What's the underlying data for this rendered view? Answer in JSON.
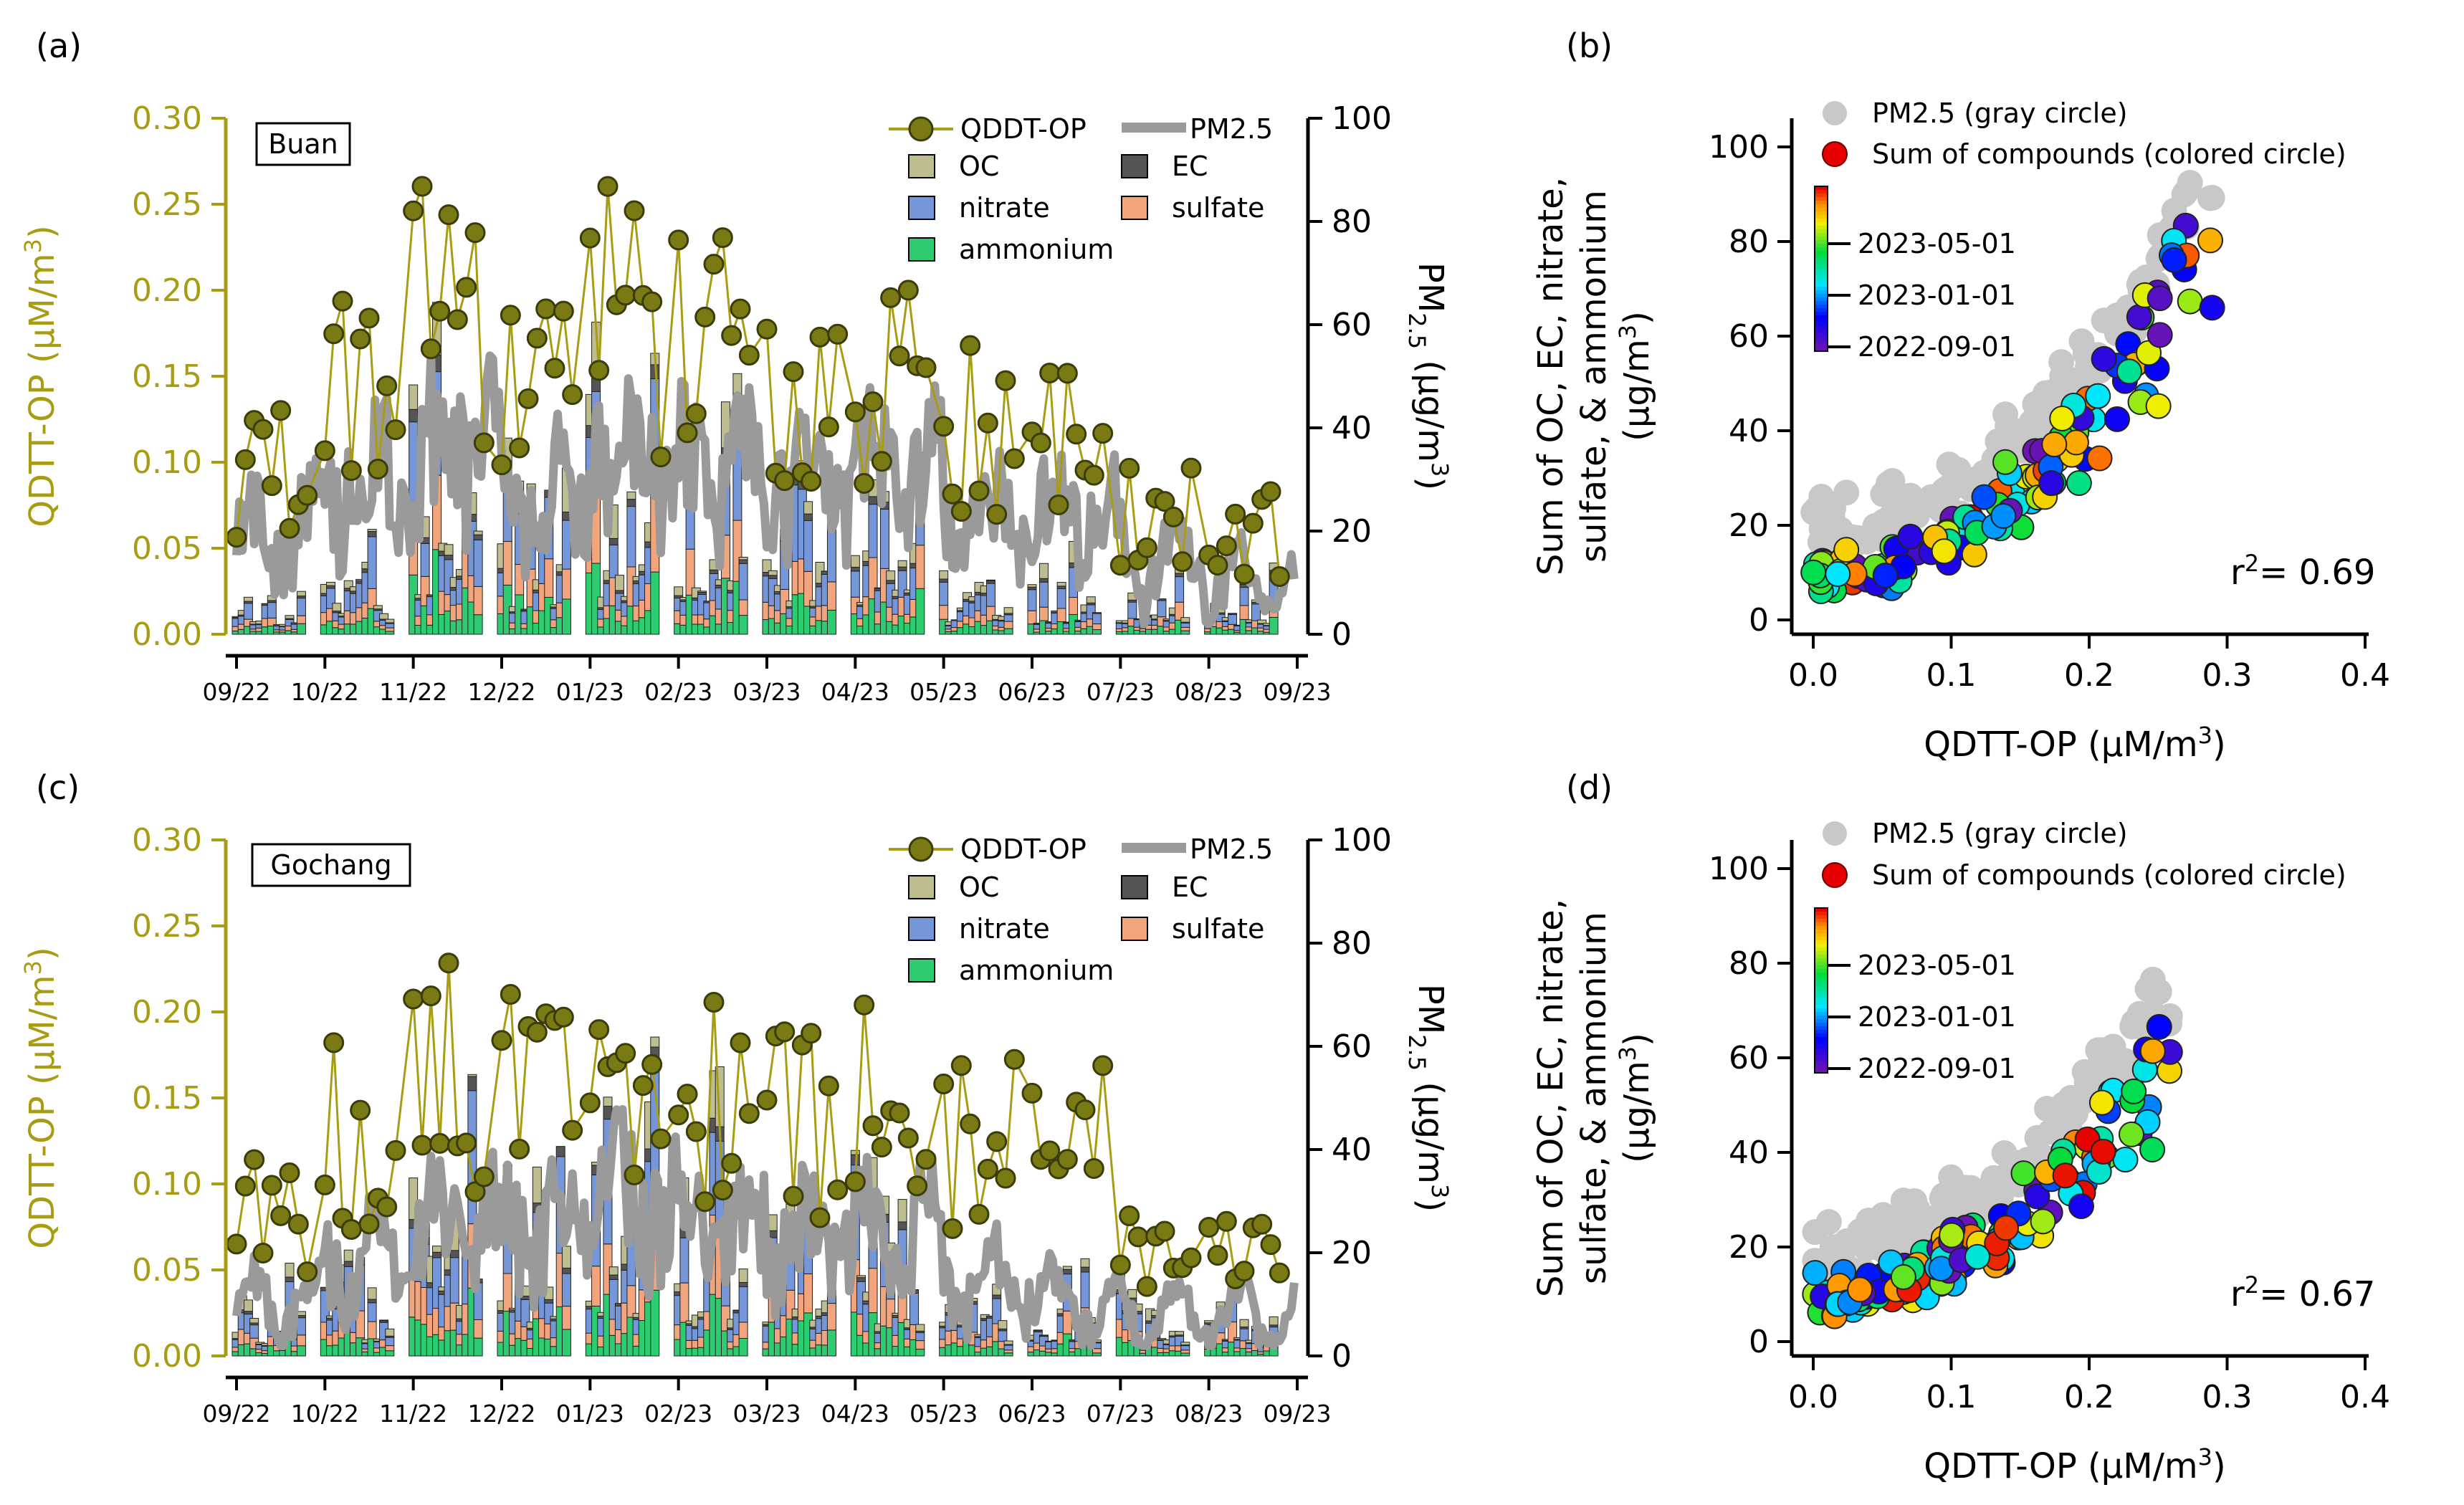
{
  "colors": {
    "olive": "#a89c12",
    "marker_fill": "#7a7a14",
    "marker_edge": "#3c3c0a",
    "pm_line": "#9a9a9a",
    "oc": "#bdbd8f",
    "ec": "#555555",
    "nitrate": "#7596d8",
    "sulfate": "#f2a47d",
    "ammonium": "#2ecc71",
    "gray_circle": "#c8c8c8"
  },
  "chart_data": [
    {
      "panel": "(a)",
      "type": "bar+line",
      "site": "Buan",
      "x_tick_labels": [
        "09/22",
        "10/22",
        "11/22",
        "12/22",
        "01/23",
        "02/23",
        "03/23",
        "04/23",
        "05/23",
        "06/23",
        "07/23",
        "08/23",
        "09/23"
      ],
      "y_left_label_main": "QDTT-OP (µM/m",
      "y_left_label_sup": "3",
      "y_left_label_end": ")",
      "y_left_range": [
        0,
        0.3
      ],
      "y_left_ticks": [
        "0.00",
        "0.05",
        "0.10",
        "0.15",
        "0.20",
        "0.25",
        "0.30"
      ],
      "y_right_label_main": "PM",
      "y_right_label_sub": "2.5",
      "y_right_label_end": " (µg/m",
      "y_right_label_sup": "3",
      "y_right_label_close": ")",
      "y_right_range": [
        0,
        100
      ],
      "y_right_ticks": [
        "0",
        "20",
        "40",
        "60",
        "80",
        "100"
      ],
      "legend": {
        "qdtt": "QDDT-OP",
        "pm": "PM2.5",
        "oc": "OC",
        "ec": "EC",
        "nitrate": "nitrate",
        "sulfate": "sulfate",
        "ammonium": "ammonium"
      },
      "seed": 11,
      "qdtt_months": [
        0.09,
        0.14,
        0.19,
        0.15,
        0.18,
        0.16,
        0.14,
        0.15,
        0.12,
        0.11,
        0.07,
        0.06
      ],
      "pm_months": [
        20,
        30,
        35,
        26,
        34,
        30,
        28,
        32,
        22,
        22,
        14,
        10
      ],
      "bar_months": [
        6,
        9,
        22,
        16,
        24,
        18,
        16,
        20,
        8,
        7,
        6,
        5
      ]
    },
    {
      "panel": "(b)",
      "type": "scatter",
      "x_label_main": "QDTT-OP (µM/m",
      "x_label_sup": "3",
      "x_label_end": ")",
      "x_range": [
        0,
        0.4
      ],
      "x_ticks": [
        "0.0",
        "0.1",
        "0.2",
        "0.3",
        "0.4"
      ],
      "y_range": [
        0,
        100
      ],
      "y_ticks": [
        "0",
        "20",
        "40",
        "60",
        "80",
        "100"
      ],
      "y_label_lines": [
        "Sum of OC, EC, nitrate,",
        "sulfate, & ammonium"
      ],
      "y_label_unit_main": "(µg/m",
      "y_label_unit_sup": "3",
      "y_label_unit_end": ")",
      "legend_gray": "PM2.5 (gray circle)",
      "legend_color": "Sum of compounds (colored circle)",
      "colorbar_ticks": [
        "2023-05-01",
        "2023-01-01",
        "2022-09-01"
      ],
      "r2_label": "r",
      "r2_sup": "2",
      "r2_value": "= 0.69",
      "seed": 23,
      "slope": 150,
      "max_x": 0.29
    },
    {
      "panel": "(c)",
      "type": "bar+line",
      "site": "Gochang",
      "x_tick_labels": [
        "09/22",
        "10/22",
        "11/22",
        "12/22",
        "01/23",
        "02/23",
        "03/23",
        "04/23",
        "05/23",
        "06/23",
        "07/23",
        "08/23",
        "09/23"
      ],
      "y_left_label_main": "QDTT-OP (µM/m",
      "y_left_label_sup": "3",
      "y_left_label_end": ")",
      "y_left_range": [
        0,
        0.3
      ],
      "y_left_ticks": [
        "0.00",
        "0.05",
        "0.10",
        "0.15",
        "0.20",
        "0.25",
        "0.30"
      ],
      "y_right_label_main": "PM",
      "y_right_label_sub": "2.5",
      "y_right_label_end": " (µg/m",
      "y_right_label_sup": "3",
      "y_right_label_close": ")",
      "y_right_range": [
        0,
        100
      ],
      "y_right_ticks": [
        "0",
        "20",
        "40",
        "60",
        "80",
        "100"
      ],
      "legend": {
        "qdtt": "QDDT-OP",
        "pm": "PM2.5",
        "oc": "OC",
        "ec": "EC",
        "nitrate": "nitrate",
        "sulfate": "sulfate",
        "ammonium": "ammonium"
      },
      "seed": 37,
      "qdtt_months": [
        0.08,
        0.13,
        0.16,
        0.15,
        0.17,
        0.16,
        0.14,
        0.15,
        0.12,
        0.12,
        0.07,
        0.06
      ],
      "pm_months": [
        10,
        18,
        26,
        24,
        30,
        26,
        22,
        24,
        14,
        10,
        8,
        8
      ],
      "bar_months": [
        8,
        10,
        22,
        18,
        26,
        22,
        16,
        20,
        9,
        8,
        7,
        6
      ]
    },
    {
      "panel": "(d)",
      "type": "scatter",
      "x_label_main": "QDTT-OP (µM/m",
      "x_label_sup": "3",
      "x_label_end": ")",
      "x_range": [
        0,
        0.4
      ],
      "x_ticks": [
        "0.0",
        "0.1",
        "0.2",
        "0.3",
        "0.4"
      ],
      "y_range": [
        0,
        100
      ],
      "y_ticks": [
        "0",
        "20",
        "40",
        "60",
        "80",
        "100"
      ],
      "y_label_lines": [
        "Sum of OC, EC, nitrate,",
        "sulfate, & ammonium"
      ],
      "y_label_unit_main": "(µg/m",
      "y_label_unit_sup": "3",
      "y_label_unit_end": ")",
      "legend_gray": "PM2.5 (gray circle)",
      "legend_color": "Sum of compounds (colored circle)",
      "colorbar_ticks": [
        "2023-05-01",
        "2023-01-01",
        "2022-09-01"
      ],
      "r2_label": "r",
      "r2_sup": "2",
      "r2_value": "= 0.67",
      "seed": 51,
      "slope": 140,
      "max_x": 0.26
    }
  ]
}
